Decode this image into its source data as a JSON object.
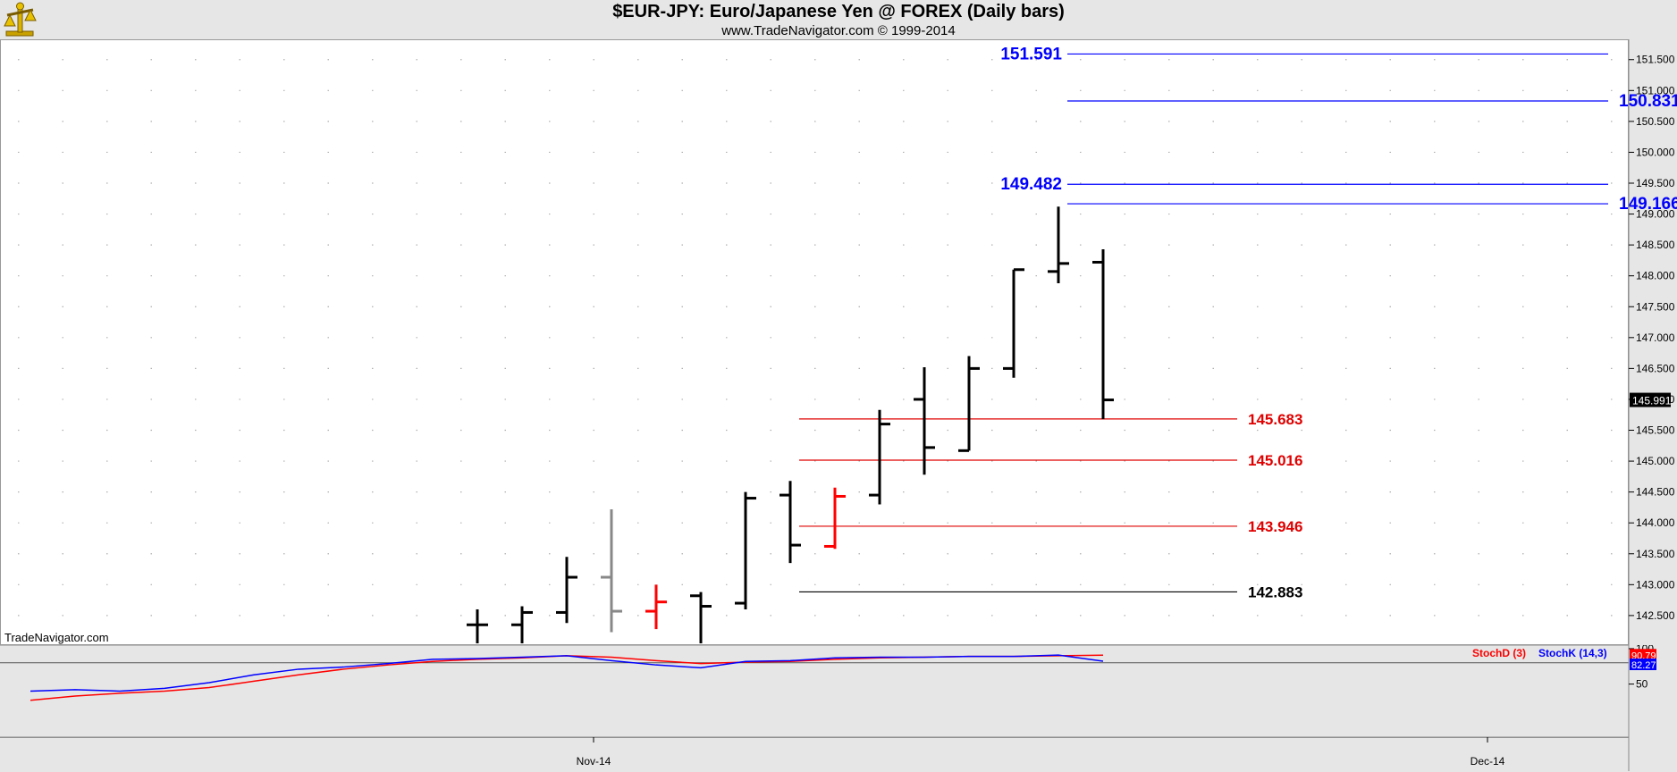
{
  "header": {
    "title": "$EUR-JPY:  Euro/Japanese Yen @ FOREX  (Daily bars)",
    "subtitle": "www.TradeNavigator.com © 1999-2014"
  },
  "watermark": "TradeNavigator.com",
  "colors": {
    "up": "#000000",
    "down": "#ff0000",
    "neutral": "#888888",
    "blue_line": "#0000ff",
    "red_line": "#e00000",
    "stochD": "#ff0000",
    "stochK": "#0000ff"
  },
  "chart_data": [
    {
      "type": "ohlc",
      "title": "$EUR-JPY:  Euro/Japanese Yen @ FOREX  (Daily bars)",
      "ylim": [
        142.05,
        151.8
      ],
      "y_ticks": [
        "151.500",
        "151.000",
        "150.500",
        "150.000",
        "149.500",
        "149.000",
        "148.500",
        "148.000",
        "147.500",
        "147.000",
        "146.500",
        "146.000",
        "145.500",
        "145.000",
        "144.500",
        "144.000",
        "143.500",
        "143.000",
        "142.500"
      ],
      "x_labels": [
        {
          "label": "Nov-14",
          "index": 3
        },
        {
          "label": "Dec-14",
          "index": 23
        }
      ],
      "last_price": "145.991",
      "bars": [
        {
          "i": 0,
          "o": 142.35,
          "h": 142.6,
          "l": 142.05,
          "c": 142.35,
          "color": "up"
        },
        {
          "i": 1,
          "o": 142.35,
          "h": 142.65,
          "l": 142.05,
          "c": 142.55,
          "color": "up"
        },
        {
          "i": 2,
          "o": 142.55,
          "h": 143.45,
          "l": 142.38,
          "c": 143.12,
          "color": "up"
        },
        {
          "i": 3,
          "o": 143.12,
          "h": 144.22,
          "l": 142.23,
          "c": 142.57,
          "color": "neutral"
        },
        {
          "i": 4,
          "o": 142.57,
          "h": 143.0,
          "l": 142.28,
          "c": 142.72,
          "color": "down"
        },
        {
          "i": 5,
          "o": 142.82,
          "h": 142.88,
          "l": 142.05,
          "c": 142.65,
          "color": "up"
        },
        {
          "i": 6,
          "o": 142.7,
          "h": 144.5,
          "l": 142.6,
          "c": 144.4,
          "color": "up"
        },
        {
          "i": 7,
          "o": 144.45,
          "h": 144.68,
          "l": 143.35,
          "c": 143.64,
          "color": "up"
        },
        {
          "i": 8,
          "o": 143.62,
          "h": 144.57,
          "l": 143.58,
          "c": 144.43,
          "color": "down"
        },
        {
          "i": 9,
          "o": 144.45,
          "h": 145.83,
          "l": 144.3,
          "c": 145.6,
          "color": "up"
        },
        {
          "i": 10,
          "o": 146.0,
          "h": 146.52,
          "l": 144.78,
          "c": 145.22,
          "color": "up"
        },
        {
          "i": 11,
          "o": 145.17,
          "h": 146.7,
          "l": 145.17,
          "c": 146.5,
          "color": "up"
        },
        {
          "i": 12,
          "o": 146.5,
          "h": 148.1,
          "l": 146.35,
          "c": 148.1,
          "color": "up"
        },
        {
          "i": 13,
          "o": 148.07,
          "h": 149.12,
          "l": 147.88,
          "c": 148.2,
          "color": "up"
        },
        {
          "i": 14,
          "o": 148.22,
          "h": 148.43,
          "l": 145.68,
          "c": 145.991,
          "color": "up"
        }
      ],
      "levels": [
        {
          "value": 151.591,
          "label": "151.591",
          "color": "blue",
          "label_side": "left",
          "x_start": 13.2,
          "x_end": 25.3
        },
        {
          "value": 150.831,
          "label": "150.831",
          "color": "blue",
          "label_side": "right",
          "x_start": 13.2,
          "x_end": 25.3
        },
        {
          "value": 149.482,
          "label": "149.482",
          "color": "blue",
          "label_side": "left",
          "x_start": 13.2,
          "x_end": 25.3
        },
        {
          "value": 149.166,
          "label": "149.166",
          "color": "blue",
          "label_side": "right",
          "x_start": 13.2,
          "x_end": 25.3
        },
        {
          "value": 145.683,
          "label": "145.683",
          "color": "red",
          "label_side": "right",
          "x_start": 7.2,
          "x_end": 17.0
        },
        {
          "value": 145.016,
          "label": "145.016",
          "color": "red",
          "label_side": "right",
          "x_start": 7.2,
          "x_end": 17.0
        },
        {
          "value": 143.946,
          "label": "143.946",
          "color": "red",
          "label_side": "right",
          "x_start": 7.2,
          "x_end": 17.0
        },
        {
          "value": 142.883,
          "label": "142.883",
          "color": "black",
          "label_side": "right",
          "x_start": 7.2,
          "x_end": 17.0
        }
      ]
    },
    {
      "type": "line",
      "ylim": [
        -25,
        105
      ],
      "y_ticks": [
        "100",
        "50"
      ],
      "reference_line": 80,
      "series": [
        {
          "name": "StochD (3)",
          "color": "red",
          "last": "90.79",
          "x": [
            -10,
            -9,
            -8,
            -7,
            -6,
            -5,
            -4,
            -3,
            -2,
            -1,
            0,
            1,
            2,
            3,
            4,
            5,
            6,
            7,
            8,
            9,
            10,
            11,
            12,
            13,
            14
          ],
          "values": [
            27,
            33,
            37,
            40,
            45,
            54,
            63,
            71,
            77,
            82,
            85,
            87,
            90,
            88,
            83,
            79,
            81,
            82,
            85,
            87,
            88,
            89,
            89,
            90,
            90.79
          ]
        },
        {
          "name": "StochK (14,3)",
          "color": "blue",
          "last": "82.27",
          "x": [
            -10,
            -9,
            -8,
            -7,
            -6,
            -5,
            -4,
            -3,
            -2,
            -1,
            0,
            1,
            2,
            3,
            4,
            5,
            6,
            7,
            8,
            9,
            10,
            11,
            12,
            13,
            14
          ],
          "values": [
            40,
            42,
            40,
            44,
            52,
            63,
            71,
            74,
            79,
            85,
            86,
            88,
            90,
            83,
            77,
            73,
            82,
            83,
            87,
            88,
            88,
            89,
            89,
            91,
            82.27
          ]
        }
      ]
    }
  ]
}
